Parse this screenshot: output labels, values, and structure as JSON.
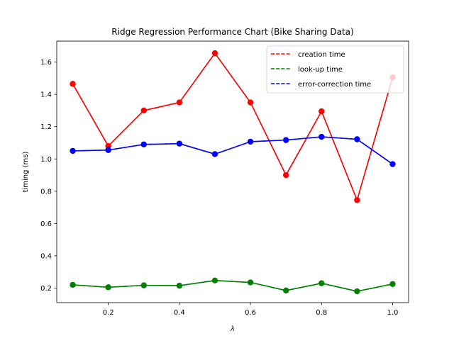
{
  "chart_data": {
    "type": "line",
    "title": "Ridge Regression Performance Chart (Bike Sharing Data)",
    "xlabel": "λ",
    "ylabel": "timing (ms)",
    "xlim": [
      0.055,
      1.045
    ],
    "ylim": [
      0.11,
      1.73
    ],
    "xticks": [
      0.2,
      0.4,
      0.6,
      0.8,
      1.0
    ],
    "xtick_labels": [
      "0.2",
      "0.4",
      "0.6",
      "0.8",
      "1.0"
    ],
    "yticks": [
      0.2,
      0.4,
      0.6,
      0.8,
      1.0,
      1.2,
      1.4,
      1.6
    ],
    "ytick_labels": [
      "0.2",
      "0.4",
      "0.6",
      "0.8",
      "1.0",
      "1.2",
      "1.4",
      "1.6"
    ],
    "x": [
      0.1,
      0.2,
      0.3,
      0.4,
      0.5,
      0.6,
      0.7,
      0.8,
      0.9,
      1.0
    ],
    "grid": false,
    "legend_position": "top-right",
    "series": [
      {
        "name": "creation time",
        "color": "#ff0000",
        "values": [
          1.465,
          1.08,
          1.3,
          1.35,
          1.655,
          1.35,
          0.9,
          1.295,
          0.745,
          1.505
        ]
      },
      {
        "name": "look-up time",
        "color": "#008000",
        "values": [
          0.22,
          0.205,
          0.217,
          0.215,
          0.247,
          0.235,
          0.185,
          0.23,
          0.18,
          0.225
        ]
      },
      {
        "name": "error-correction time",
        "color": "#0000ff",
        "values": [
          1.05,
          1.055,
          1.09,
          1.095,
          1.03,
          1.107,
          1.117,
          1.137,
          1.122,
          0.968
        ]
      }
    ]
  }
}
